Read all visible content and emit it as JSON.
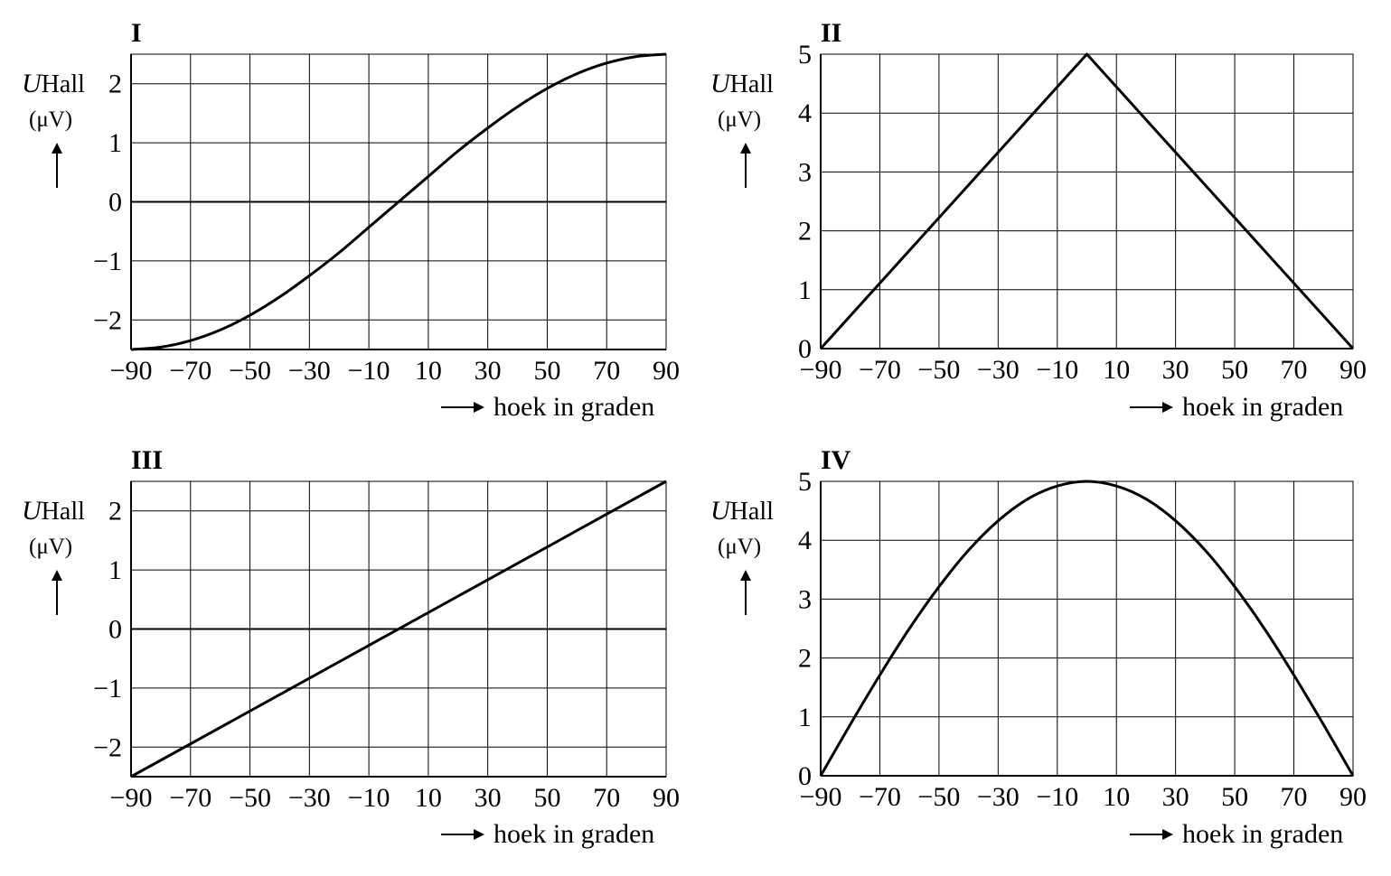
{
  "x_axis_label": "hoek in graden",
  "y_axis_symbol": "U",
  "y_axis_subscript": "Hall",
  "y_axis_unit": "(μV)",
  "line_color": "#000000",
  "grid_color": "#000000",
  "chart_data": [
    {
      "type": "line",
      "title": "I",
      "xlabel": "hoek in graden",
      "ylabel": "U Hall (μV)",
      "xlim": [
        -90,
        90
      ],
      "ylim": [
        -2.5,
        2.5
      ],
      "x_ticks": [
        "−90",
        "−70",
        "−50",
        "−30",
        "−10",
        "10",
        "30",
        "50",
        "70",
        "90"
      ],
      "y_ticks": [
        "2",
        "1",
        "0",
        "−1",
        "−2"
      ],
      "x_tick_values": [
        -90,
        -70,
        -50,
        -30,
        -10,
        10,
        30,
        50,
        70,
        90
      ],
      "y_tick_values": [
        2,
        1,
        0,
        -1,
        -2
      ],
      "grid": true,
      "x": [
        -90,
        -80,
        -70,
        -60,
        -50,
        -40,
        -30,
        -20,
        -10,
        0,
        10,
        20,
        30,
        40,
        50,
        60,
        70,
        80,
        90
      ],
      "y": [
        -2.5,
        -2.46,
        -2.35,
        -2.17,
        -1.92,
        -1.61,
        -1.25,
        -0.86,
        -0.43,
        0.0,
        0.43,
        0.86,
        1.25,
        1.61,
        1.92,
        2.17,
        2.35,
        2.46,
        2.5
      ]
    },
    {
      "type": "line",
      "title": "II",
      "xlabel": "hoek in graden",
      "ylabel": "U Hall (μV)",
      "xlim": [
        -90,
        90
      ],
      "ylim": [
        0,
        5
      ],
      "x_ticks": [
        "−90",
        "−70",
        "−50",
        "−30",
        "−10",
        "10",
        "30",
        "50",
        "70",
        "90"
      ],
      "y_ticks": [
        "5",
        "4",
        "3",
        "2",
        "1",
        "0"
      ],
      "x_tick_values": [
        -90,
        -70,
        -50,
        -30,
        -10,
        10,
        30,
        50,
        70,
        90
      ],
      "y_tick_values": [
        5,
        4,
        3,
        2,
        1,
        0
      ],
      "grid": true,
      "x": [
        -90,
        0,
        90
      ],
      "y": [
        0,
        5,
        0
      ]
    },
    {
      "type": "line",
      "title": "III",
      "xlabel": "hoek in graden",
      "ylabel": "U Hall (μV)",
      "xlim": [
        -90,
        90
      ],
      "ylim": [
        -2.5,
        2.5
      ],
      "x_ticks": [
        "−90",
        "−70",
        "−50",
        "−30",
        "−10",
        "10",
        "30",
        "50",
        "70",
        "90"
      ],
      "y_ticks": [
        "2",
        "1",
        "0",
        "−1",
        "−2"
      ],
      "x_tick_values": [
        -90,
        -70,
        -50,
        -30,
        -10,
        10,
        30,
        50,
        70,
        90
      ],
      "y_tick_values": [
        2,
        1,
        0,
        -1,
        -2
      ],
      "grid": true,
      "x": [
        -90,
        90
      ],
      "y": [
        -2.5,
        2.5
      ]
    },
    {
      "type": "line",
      "title": "IV",
      "xlabel": "hoek in graden",
      "ylabel": "U Hall (μV)",
      "xlim": [
        -90,
        90
      ],
      "ylim": [
        0,
        5
      ],
      "x_ticks": [
        "−90",
        "−70",
        "−50",
        "−30",
        "−10",
        "10",
        "30",
        "50",
        "70",
        "90"
      ],
      "y_ticks": [
        "5",
        "4",
        "3",
        "2",
        "1",
        "0"
      ],
      "x_tick_values": [
        -90,
        -70,
        -50,
        -30,
        -10,
        10,
        30,
        50,
        70,
        90
      ],
      "y_tick_values": [
        5,
        4,
        3,
        2,
        1,
        0
      ],
      "grid": true,
      "x": [
        -90,
        -80,
        -70,
        -60,
        -50,
        -40,
        -30,
        -20,
        -10,
        0,
        10,
        20,
        30,
        40,
        50,
        60,
        70,
        80,
        90
      ],
      "y": [
        0.0,
        0.87,
        1.71,
        2.5,
        3.21,
        3.83,
        4.33,
        4.7,
        4.92,
        5.0,
        4.92,
        4.7,
        4.33,
        3.83,
        3.21,
        2.5,
        1.71,
        0.87,
        0.0
      ]
    }
  ]
}
